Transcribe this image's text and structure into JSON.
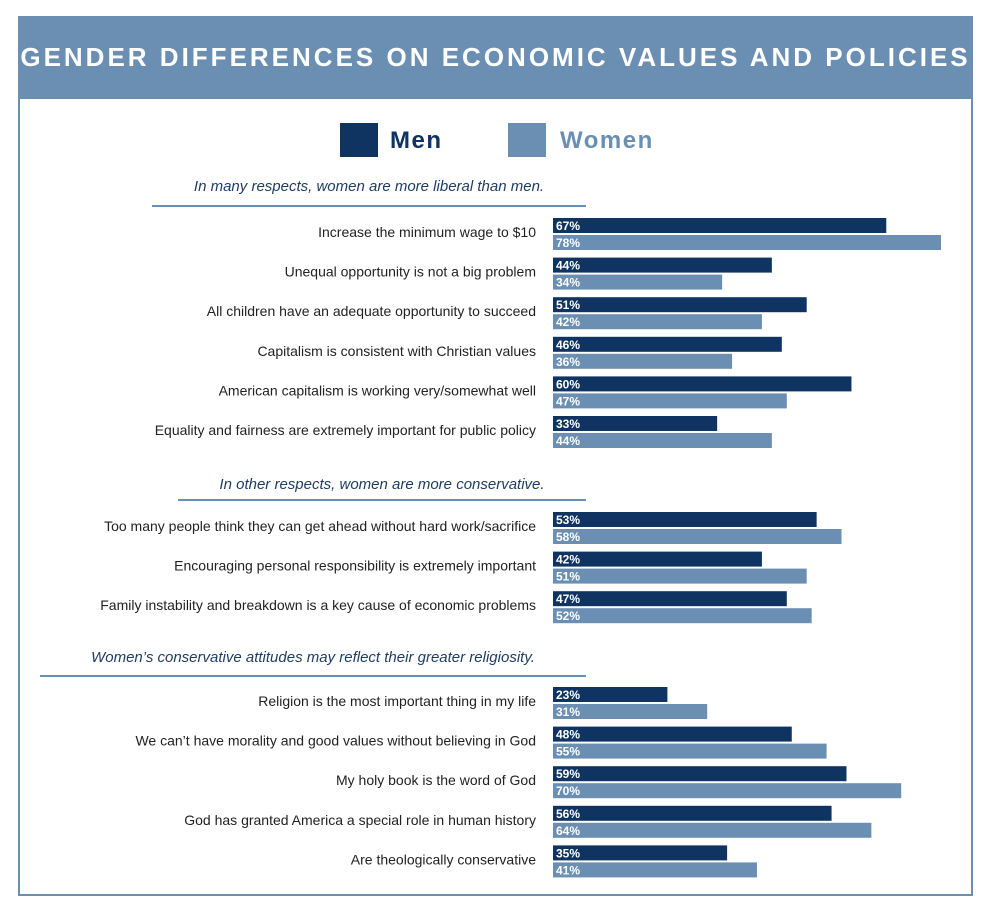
{
  "title": "GENDER DIFFERENCES ON ECONOMIC VALUES AND POLICIES",
  "colors": {
    "men": "#0f3461",
    "women": "#6a8fb3",
    "rule": "#6a8fb3"
  },
  "legend": {
    "men": "Men",
    "women": "Women"
  },
  "chart_data": {
    "type": "bar",
    "orientation": "horizontal",
    "unit": "%",
    "xlim": [
      0,
      78
    ],
    "series_names": [
      "Men",
      "Women"
    ],
    "sections": [
      {
        "title": "In many respects, women are more liberal than men.",
        "rows": [
          {
            "label": "Increase the minimum wage to $10",
            "men": 67,
            "women": 78
          },
          {
            "label": "Unequal opportunity is not a big problem",
            "men": 44,
            "women": 34
          },
          {
            "label": "All children have an adequate opportunity to succeed",
            "men": 51,
            "women": 42
          },
          {
            "label": "Capitalism is consistent with Christian values",
            "men": 46,
            "women": 36
          },
          {
            "label": "American capitalism is working very/somewhat well",
            "men": 60,
            "women": 47
          },
          {
            "label": "Equality and fairness are extremely important for public policy",
            "men": 33,
            "women": 44
          }
        ]
      },
      {
        "title": "In other respects, women are more conservative.",
        "rows": [
          {
            "label": "Too many people think they can get ahead without hard work/sacrifice",
            "men": 53,
            "women": 58
          },
          {
            "label": "Encouraging personal responsibility is extremely important",
            "men": 42,
            "women": 51
          },
          {
            "label": "Family instability and breakdown is a key cause of economic problems",
            "men": 47,
            "women": 52
          }
        ]
      },
      {
        "title": "Women’s conservative attitudes may reflect their greater religiosity.",
        "rows": [
          {
            "label": "Religion is the most important thing in my life",
            "men": 23,
            "women": 31
          },
          {
            "label": "We can’t have morality and good values without believing in God",
            "men": 48,
            "women": 55
          },
          {
            "label": "My holy book is the word of God",
            "men": 59,
            "women": 70
          },
          {
            "label": "God has granted America a special role in human history",
            "men": 56,
            "women": 64
          },
          {
            "label": "Are theologically conservative",
            "men": 35,
            "women": 41
          }
        ]
      }
    ]
  }
}
